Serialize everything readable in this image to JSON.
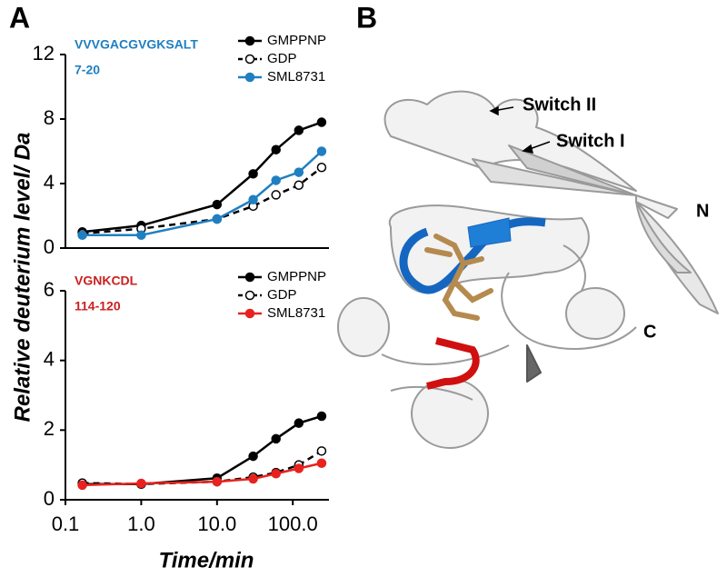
{
  "figure": {
    "panel_labels": [
      "A",
      "B"
    ],
    "y_label": "Relative deuterium level/ Da"
  },
  "structure": {
    "labels": [
      "Switch II",
      "Switch I",
      "N",
      "C"
    ]
  },
  "chart_data": [
    {
      "type": "line",
      "xscale": "log",
      "x": [
        0.167,
        1,
        10,
        30,
        60,
        120,
        240
      ],
      "xlim": [
        0.1,
        300
      ],
      "ylim": [
        0,
        12
      ],
      "yticks": [
        0,
        4,
        8,
        12
      ],
      "annotation": [
        "VVVGACGVGKSALT",
        "7-20"
      ],
      "annotation_color": "#1f7fc1",
      "series": [
        {
          "name": "GMPPNP",
          "color": "#000000",
          "line_style": "solid",
          "marker": "filled",
          "values": [
            1.0,
            1.4,
            2.7,
            4.6,
            6.1,
            7.3,
            7.8
          ]
        },
        {
          "name": "GDP",
          "color": "#000000",
          "line_style": "dashed",
          "marker": "open",
          "values": [
            0.9,
            1.2,
            1.8,
            2.6,
            3.3,
            3.9,
            5.0
          ]
        },
        {
          "name": "SML8731",
          "color": "#1f7fc1",
          "line_style": "solid",
          "marker": "filled",
          "values": [
            0.8,
            0.8,
            1.8,
            3.0,
            4.2,
            4.7,
            6.0
          ]
        }
      ]
    },
    {
      "type": "line",
      "xscale": "log",
      "x": [
        0.167,
        1,
        10,
        30,
        60,
        120,
        240
      ],
      "xlim": [
        0.1,
        300
      ],
      "xticks": [
        0.1,
        {
          "value": 1,
          "label": "1.0"
        },
        {
          "value": 10,
          "label": "10.0"
        },
        {
          "value": 100,
          "label": "100.0"
        }
      ],
      "xlabel": "Time/min",
      "ylim": [
        0,
        6
      ],
      "yticks": [
        0,
        2,
        4,
        6
      ],
      "annotation": [
        "VGNKCDL",
        "114-120"
      ],
      "annotation_color": "#cc1f1f",
      "series": [
        {
          "name": "GMPPNP",
          "color": "#000000",
          "line_style": "solid",
          "marker": "filled",
          "values": [
            0.45,
            0.45,
            0.62,
            1.25,
            1.75,
            2.2,
            2.4
          ]
        },
        {
          "name": "GDP",
          "color": "#000000",
          "line_style": "dashed",
          "marker": "open",
          "values": [
            0.48,
            0.45,
            0.52,
            0.65,
            0.78,
            1.0,
            1.4
          ]
        },
        {
          "name": "SML8731",
          "color": "#e8221f",
          "line_style": "solid",
          "marker": "filled",
          "values": [
            0.42,
            0.47,
            0.52,
            0.6,
            0.75,
            0.9,
            1.05
          ]
        }
      ]
    }
  ]
}
